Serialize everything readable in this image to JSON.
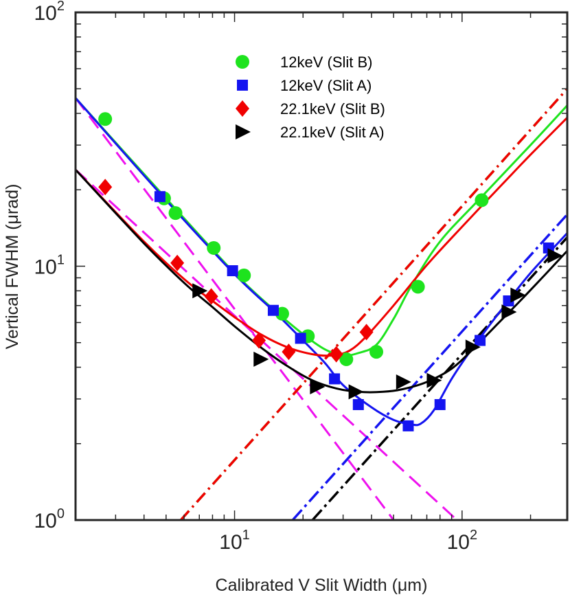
{
  "chart_data": {
    "type": "scatter",
    "title": "",
    "xlabel": "Calibrated V Slit Width (μm)",
    "ylabel": "Vertical FWHM (μrad)",
    "xscale": "log",
    "yscale": "log",
    "xlim": [
      2.0,
      290
    ],
    "ylim": [
      1,
      100
    ],
    "x_ticks": [
      {
        "value": 10,
        "base": "10",
        "exp": "1"
      },
      {
        "value": 100,
        "base": "10",
        "exp": "2"
      }
    ],
    "y_ticks": [
      {
        "value": 1,
        "base": "10",
        "exp": "0"
      },
      {
        "value": 10,
        "base": "10",
        "exp": "1"
      },
      {
        "value": 100,
        "base": "10",
        "exp": "2"
      }
    ],
    "grid": false,
    "legend_position": "top-center",
    "series": [
      {
        "name": "12keV (Slit B)",
        "marker": "circle",
        "color": "#1ee31e",
        "points": [
          [
            2.7,
            38
          ],
          [
            4.9,
            18.5
          ],
          [
            5.5,
            16.2
          ],
          [
            8.1,
            11.8
          ],
          [
            11.0,
            9.2
          ],
          [
            16.2,
            6.5
          ],
          [
            21.0,
            5.3
          ],
          [
            31.0,
            4.3
          ],
          [
            42.0,
            4.6
          ],
          [
            64.0,
            8.3
          ],
          [
            122.0,
            18.2
          ]
        ],
        "fit": [
          [
            2.0,
            46
          ],
          [
            5,
            18.5
          ],
          [
            10,
            9.4
          ],
          [
            15,
            6.7
          ],
          [
            20,
            5.4
          ],
          [
            25,
            4.7
          ],
          [
            30,
            4.45
          ],
          [
            35,
            4.55
          ],
          [
            42,
            4.9
          ],
          [
            50,
            6.2
          ],
          [
            60,
            8.4
          ],
          [
            80,
            12.5
          ],
          [
            120,
            18.5
          ],
          [
            200,
            30
          ],
          [
            290,
            43
          ]
        ],
        "asymptote": [
          [
            5.8,
            1
          ],
          [
            290,
            50
          ]
        ]
      },
      {
        "name": "12keV (Slit A)",
        "marker": "square",
        "color": "#1414f0",
        "points": [
          [
            4.7,
            18.8
          ],
          [
            9.8,
            9.6
          ],
          [
            14.8,
            6.7
          ],
          [
            19.5,
            5.2
          ],
          [
            27.5,
            3.6
          ],
          [
            35.0,
            2.85
          ],
          [
            58.0,
            2.35
          ],
          [
            80.0,
            2.85
          ],
          [
            120.0,
            5.1
          ],
          [
            160.0,
            7.3
          ],
          [
            240.0,
            11.8
          ]
        ],
        "fit": [
          [
            2.0,
            46
          ],
          [
            5,
            18.2
          ],
          [
            10,
            9.3
          ],
          [
            15,
            6.6
          ],
          [
            20,
            5.1
          ],
          [
            25,
            4.15
          ],
          [
            30,
            3.4
          ],
          [
            40,
            2.78
          ],
          [
            50,
            2.48
          ],
          [
            60,
            2.38
          ],
          [
            66,
            2.4
          ],
          [
            75,
            2.7
          ],
          [
            90,
            3.6
          ],
          [
            110,
            4.7
          ],
          [
            150,
            6.8
          ],
          [
            200,
            9.4
          ],
          [
            290,
            13.5
          ]
        ],
        "asymptote": [
          [
            18.0,
            1
          ],
          [
            290,
            16
          ]
        ]
      },
      {
        "name": "22.1keV (Slit B)",
        "marker": "diamond",
        "color": "#f00000",
        "points": [
          [
            2.7,
            20.5
          ],
          [
            5.6,
            10.3
          ],
          [
            7.9,
            7.6
          ],
          [
            12.8,
            5.1
          ],
          [
            17.3,
            4.6
          ],
          [
            28.0,
            4.5
          ],
          [
            38.0,
            5.5
          ]
        ],
        "fit": [
          [
            2.0,
            24
          ],
          [
            4,
            12.5
          ],
          [
            6,
            8.9
          ],
          [
            8,
            7.3
          ],
          [
            10,
            6.3
          ],
          [
            13,
            5.4
          ],
          [
            17,
            4.8
          ],
          [
            22,
            4.5
          ],
          [
            27,
            4.45
          ],
          [
            32,
            4.65
          ],
          [
            38,
            5.3
          ],
          [
            50,
            7.0
          ],
          [
            70,
            10.1
          ],
          [
            100,
            14.3
          ],
          [
            150,
            21.0
          ],
          [
            200,
            27.5
          ],
          [
            290,
            38.5
          ]
        ],
        "asymptote": [
          [
            5.8,
            1
          ],
          [
            290,
            50
          ]
        ]
      },
      {
        "name": "22.1keV (Slit A)",
        "marker": "triangle-right",
        "color": "#000000",
        "points": [
          [
            7.0,
            8.0
          ],
          [
            13.0,
            4.3
          ],
          [
            23.0,
            3.35
          ],
          [
            34.0,
            3.2
          ],
          [
            55.0,
            3.5
          ],
          [
            75.0,
            3.55
          ],
          [
            111.0,
            4.8
          ],
          [
            160.0,
            6.6
          ],
          [
            175.0,
            7.7
          ],
          [
            255.0,
            11.0
          ]
        ],
        "fit": [
          [
            2.0,
            24
          ],
          [
            4,
            12.3
          ],
          [
            6,
            8.6
          ],
          [
            8,
            6.9
          ],
          [
            10,
            5.8
          ],
          [
            13,
            4.8
          ],
          [
            17,
            4.05
          ],
          [
            22,
            3.55
          ],
          [
            28,
            3.3
          ],
          [
            35,
            3.2
          ],
          [
            45,
            3.2
          ],
          [
            55,
            3.28
          ],
          [
            70,
            3.5
          ],
          [
            90,
            3.95
          ],
          [
            110,
            4.65
          ],
          [
            140,
            5.8
          ],
          [
            180,
            7.3
          ],
          [
            230,
            9.2
          ],
          [
            290,
            11.5
          ]
        ],
        "asymptote": [
          [
            22.0,
            1
          ],
          [
            290,
            13
          ]
        ]
      }
    ],
    "reference_lines": [
      {
        "name": "geometric-asymptote-wide",
        "color": "#ee11ee",
        "style": "dashed",
        "points": [
          [
            2.0,
            46
          ],
          [
            50,
            1
          ]
        ]
      },
      {
        "name": "geometric-asymptote-narrow",
        "color": "#ee11ee",
        "style": "dashed",
        "points": [
          [
            2.0,
            24
          ],
          [
            95,
            1
          ]
        ]
      }
    ]
  }
}
